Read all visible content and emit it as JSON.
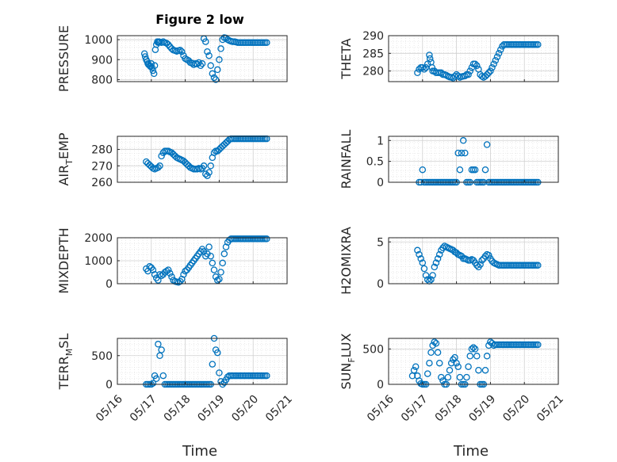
{
  "figure": {
    "title": "Figure 2 low",
    "background": "#ffffff"
  },
  "colors": {
    "marker": "#0072bd",
    "axis": "#262626",
    "grid": "#dcdcdc"
  },
  "chart_data": [
    {
      "type": "scatter",
      "ylabel": "PRESSURE",
      "yticks": [
        800,
        900,
        1000
      ],
      "ylim": [
        790,
        1020
      ],
      "xlim": [
        0,
        5
      ],
      "x": [
        0.8,
        0.82,
        0.85,
        0.88,
        0.9,
        0.92,
        0.95,
        0.98,
        1.0,
        1.02,
        1.05,
        1.08,
        1.1,
        1.12,
        1.15,
        1.18,
        1.2,
        1.22,
        1.25,
        1.3,
        1.35,
        1.4,
        1.45,
        1.5,
        1.55,
        1.6,
        1.65,
        1.7,
        1.75,
        1.8,
        1.85,
        1.9,
        1.95,
        2.0,
        2.05,
        2.1,
        2.15,
        2.2,
        2.25,
        2.3,
        2.35,
        2.4,
        2.45,
        2.5,
        2.55,
        2.6,
        2.65,
        2.7,
        2.75,
        2.8,
        2.85,
        2.9,
        2.95,
        3.0,
        3.05,
        3.1,
        3.15,
        3.2,
        3.25,
        3.3,
        3.35,
        3.4,
        3.45,
        3.5,
        3.55,
        3.6,
        3.65,
        3.7,
        3.75,
        3.8,
        3.85,
        3.9,
        3.95,
        4.0,
        4.05,
        4.1,
        4.15,
        4.2,
        4.25,
        4.3,
        4.35,
        4.4
      ],
      "y": [
        930,
        915,
        900,
        890,
        880,
        875,
        870,
        865,
        880,
        860,
        845,
        830,
        870,
        950,
        975,
        990,
        985,
        990,
        988,
        985,
        990,
        985,
        982,
        975,
        965,
        955,
        948,
        945,
        942,
        945,
        948,
        940,
        920,
        905,
        900,
        895,
        885,
        882,
        875,
        880,
        878,
        885,
        870,
        880,
        1005,
        990,
        940,
        920,
        870,
        830,
        810,
        800,
        850,
        900,
        955,
        1000,
        1010,
        1008,
        1000,
        995,
        992,
        990,
        990,
        988,
        985,
        985,
        985,
        985,
        985,
        985,
        985,
        985,
        985,
        985,
        985,
        985,
        985,
        985,
        985,
        985,
        985,
        985
      ]
    },
    {
      "type": "scatter",
      "ylabel": "THETA",
      "yticks": [
        280,
        285,
        290
      ],
      "ylim": [
        277,
        290
      ],
      "xlim": [
        0,
        5
      ],
      "x": [
        0.85,
        0.9,
        0.95,
        1.0,
        1.05,
        1.1,
        1.15,
        1.2,
        1.22,
        1.25,
        1.28,
        1.3,
        1.35,
        1.4,
        1.45,
        1.5,
        1.55,
        1.6,
        1.65,
        1.7,
        1.75,
        1.8,
        1.85,
        1.9,
        1.95,
        2.0,
        2.05,
        2.1,
        2.15,
        2.2,
        2.25,
        2.3,
        2.35,
        2.4,
        2.45,
        2.5,
        2.55,
        2.6,
        2.65,
        2.7,
        2.75,
        2.8,
        2.85,
        2.9,
        2.95,
        3.0,
        3.05,
        3.1,
        3.15,
        3.2,
        3.25,
        3.3,
        3.35,
        3.4,
        3.45,
        3.5,
        3.55,
        3.6,
        3.65,
        3.7,
        3.75,
        3.8,
        3.85,
        3.9,
        3.95,
        4.0,
        4.05,
        4.1,
        4.15,
        4.2,
        4.25,
        4.3,
        4.35,
        4.4
      ],
      "y": [
        279.5,
        280.5,
        281,
        281,
        280.5,
        281,
        282,
        284.5,
        283.5,
        282.5,
        281,
        280,
        280,
        279.5,
        279.5,
        279.5,
        279.5,
        279,
        279,
        278.8,
        278.5,
        278.3,
        278.2,
        278,
        278.5,
        279,
        278.6,
        278.2,
        278.4,
        278.5,
        278.6,
        279,
        279,
        280,
        281,
        282,
        282,
        281.5,
        280.5,
        279,
        278.5,
        278.2,
        278.5,
        279,
        279.5,
        280,
        281,
        282,
        283,
        284,
        285,
        286,
        287,
        287.5,
        287.5,
        287.5,
        287.5,
        287.5,
        287.5,
        287.5,
        287.5,
        287.5,
        287.5,
        287.5,
        287.5,
        287.5,
        287.5,
        287.5,
        287.5,
        287.5,
        287.5,
        287.5,
        287.5,
        287.5
      ]
    },
    {
      "type": "scatter",
      "ylabel": "AIR_TEMP",
      "ylabel_base": "AIR",
      "ylabel_sub": "T",
      "ylabel_rest": "EMP",
      "yticks": [
        260,
        270,
        280
      ],
      "ylim": [
        260,
        288
      ],
      "xlim": [
        0,
        5
      ],
      "x": [
        0.85,
        0.9,
        0.95,
        1.0,
        1.05,
        1.1,
        1.15,
        1.2,
        1.25,
        1.3,
        1.35,
        1.4,
        1.45,
        1.5,
        1.55,
        1.6,
        1.65,
        1.7,
        1.75,
        1.8,
        1.85,
        1.9,
        1.95,
        2.0,
        2.05,
        2.1,
        2.15,
        2.2,
        2.25,
        2.3,
        2.35,
        2.4,
        2.45,
        2.5,
        2.55,
        2.6,
        2.65,
        2.7,
        2.75,
        2.8,
        2.85,
        2.9,
        2.95,
        3.0,
        3.05,
        3.1,
        3.15,
        3.2,
        3.25,
        3.3,
        3.35,
        3.4,
        3.45,
        3.5,
        3.55,
        3.6,
        3.65,
        3.7,
        3.75,
        3.8,
        3.85,
        3.9,
        3.95,
        4.0,
        4.05,
        4.1,
        4.15,
        4.2,
        4.25,
        4.3,
        4.35,
        4.4
      ],
      "y": [
        272.5,
        271.5,
        270.5,
        269.5,
        268.5,
        268,
        268.5,
        269,
        270,
        276,
        278,
        279,
        279,
        279,
        278.5,
        278,
        277,
        276,
        275,
        274.5,
        274,
        273.5,
        273,
        272,
        271,
        270,
        269,
        268.5,
        268,
        268,
        268,
        268.5,
        268,
        268.5,
        270,
        265,
        264,
        266,
        270,
        275,
        278,
        279,
        279,
        280,
        281,
        282,
        283,
        284,
        285,
        286,
        286.5,
        286.5,
        286.5,
        286.5,
        286.5,
        286.5,
        286.5,
        286.5,
        286.5,
        286.5,
        286.5,
        286.5,
        286.5,
        286.5,
        286.5,
        286.5,
        286.5,
        286.5,
        286.5,
        286.5,
        286.5,
        286.5
      ]
    },
    {
      "type": "scatter",
      "ylabel": "RAINFALL",
      "yticks": [
        0,
        0.5,
        1
      ],
      "yticklabels": [
        "0",
        "0.5",
        "1"
      ],
      "ylim": [
        0,
        1.1
      ],
      "xlim": [
        0,
        5
      ],
      "x": [
        0.9,
        0.95,
        1.0,
        1.05,
        1.1,
        1.15,
        1.2,
        1.25,
        1.3,
        1.35,
        1.4,
        1.45,
        1.5,
        1.55,
        1.6,
        1.65,
        1.7,
        1.75,
        1.8,
        1.85,
        1.9,
        1.95,
        2.0,
        2.05,
        2.1,
        2.15,
        2.2,
        2.25,
        2.3,
        2.35,
        2.4,
        2.45,
        2.5,
        2.55,
        2.6,
        2.65,
        2.7,
        2.75,
        2.8,
        2.85,
        2.9,
        2.95,
        3.0,
        3.05,
        3.1,
        3.15,
        3.2,
        3.25,
        3.3,
        3.35,
        3.4,
        3.45,
        3.5,
        3.55,
        3.6,
        3.65,
        3.7,
        3.75,
        3.8,
        3.85,
        3.9,
        3.95,
        4.0,
        4.05,
        4.1,
        4.15,
        4.2,
        4.25,
        4.3,
        4.35,
        4.4
      ],
      "y": [
        0,
        0,
        0.3,
        0,
        0,
        0,
        0,
        0,
        0,
        0,
        0,
        0,
        0,
        0,
        0,
        0,
        0,
        0,
        0,
        0,
        0,
        0,
        0,
        0.7,
        0.3,
        0.7,
        1,
        0.7,
        0,
        0,
        0,
        0.3,
        0.3,
        0.3,
        0,
        0,
        0,
        0,
        0,
        0.3,
        0.9,
        0,
        0,
        0,
        0,
        0,
        0,
        0,
        0,
        0,
        0,
        0,
        0,
        0,
        0,
        0,
        0,
        0,
        0,
        0,
        0,
        0,
        0,
        0,
        0,
        0,
        0,
        0,
        0,
        0,
        0
      ]
    },
    {
      "type": "scatter",
      "ylabel": "MIXDEPTH",
      "yticks": [
        0,
        1000,
        2000
      ],
      "ylim": [
        0,
        2000
      ],
      "xlim": [
        0,
        5
      ],
      "x": [
        0.85,
        0.9,
        0.95,
        1.0,
        1.05,
        1.1,
        1.15,
        1.2,
        1.25,
        1.3,
        1.35,
        1.4,
        1.45,
        1.5,
        1.55,
        1.6,
        1.65,
        1.7,
        1.75,
        1.8,
        1.85,
        1.9,
        1.95,
        2.0,
        2.05,
        2.1,
        2.15,
        2.2,
        2.25,
        2.3,
        2.35,
        2.4,
        2.45,
        2.5,
        2.55,
        2.6,
        2.65,
        2.7,
        2.75,
        2.8,
        2.85,
        2.9,
        2.95,
        3.0,
        3.05,
        3.1,
        3.15,
        3.2,
        3.25,
        3.3,
        3.35,
        3.4,
        3.45,
        3.5,
        3.55,
        3.6,
        3.65,
        3.7,
        3.75,
        3.8,
        3.85,
        3.9,
        3.95,
        4.0,
        4.05,
        4.1,
        4.15,
        4.2,
        4.25,
        4.3,
        4.35,
        4.4
      ],
      "y": [
        650,
        550,
        750,
        700,
        600,
        400,
        250,
        150,
        400,
        350,
        400,
        500,
        550,
        600,
        450,
        300,
        150,
        100,
        80,
        60,
        100,
        200,
        400,
        550,
        600,
        700,
        800,
        900,
        1000,
        1100,
        1200,
        1300,
        1400,
        1500,
        1400,
        1200,
        1300,
        1600,
        1200,
        900,
        600,
        300,
        150,
        200,
        500,
        900,
        1300,
        1600,
        1800,
        1900,
        1950,
        1950,
        1950,
        1950,
        1950,
        1950,
        1950,
        1950,
        1950,
        1950,
        1950,
        1950,
        1950,
        1950,
        1950,
        1950,
        1950,
        1950,
        1950,
        1950,
        1950,
        1950
      ]
    },
    {
      "type": "scatter",
      "ylabel": "H2OMIXRA",
      "yticks": [
        0,
        5
      ],
      "ylim": [
        0,
        5.5
      ],
      "xlim": [
        0,
        5
      ],
      "x": [
        0.85,
        0.9,
        0.95,
        1.0,
        1.05,
        1.1,
        1.15,
        1.2,
        1.25,
        1.3,
        1.35,
        1.4,
        1.45,
        1.5,
        1.55,
        1.6,
        1.65,
        1.7,
        1.75,
        1.8,
        1.85,
        1.9,
        1.95,
        2.0,
        2.05,
        2.1,
        2.15,
        2.2,
        2.25,
        2.3,
        2.35,
        2.4,
        2.45,
        2.5,
        2.55,
        2.6,
        2.65,
        2.7,
        2.75,
        2.8,
        2.85,
        2.9,
        2.95,
        3.0,
        3.05,
        3.1,
        3.15,
        3.2,
        3.25,
        3.3,
        3.35,
        3.4,
        3.45,
        3.5,
        3.55,
        3.6,
        3.65,
        3.7,
        3.75,
        3.8,
        3.85,
        3.9,
        3.95,
        4.0,
        4.05,
        4.1,
        4.15,
        4.2,
        4.25,
        4.3,
        4.35,
        4.4
      ],
      "y": [
        4.0,
        3.5,
        3.0,
        2.5,
        1.8,
        1.0,
        0.5,
        0.3,
        0.5,
        1.0,
        2.0,
        2.5,
        3.0,
        3.5,
        4.0,
        4.3,
        4.5,
        4.4,
        4.3,
        4.2,
        4.1,
        4.0,
        3.8,
        3.7,
        3.5,
        3.4,
        3.3,
        3.0,
        3.0,
        2.9,
        2.8,
        2.8,
        2.9,
        2.8,
        2.5,
        2.2,
        2.0,
        2.3,
        2.8,
        3.0,
        3.3,
        3.5,
        3.4,
        3.0,
        2.7,
        2.5,
        2.4,
        2.3,
        2.2,
        2.2,
        2.2,
        2.2,
        2.2,
        2.2,
        2.2,
        2.2,
        2.2,
        2.2,
        2.2,
        2.2,
        2.2,
        2.2,
        2.2,
        2.2,
        2.2,
        2.2,
        2.2,
        2.2,
        2.2,
        2.2,
        2.2,
        2.2
      ]
    },
    {
      "type": "scatter",
      "ylabel": "TERR_MSL",
      "ylabel_base": "TERR",
      "ylabel_sub": "M",
      "ylabel_rest": "SL",
      "yticks": [
        0,
        500
      ],
      "ylim": [
        0,
        800
      ],
      "xlim": [
        0,
        5
      ],
      "x": [
        0.85,
        0.9,
        0.95,
        1.0,
        1.05,
        1.1,
        1.15,
        1.2,
        1.25,
        1.3,
        1.35,
        1.4,
        1.45,
        1.5,
        1.55,
        1.6,
        1.65,
        1.7,
        1.75,
        1.8,
        1.85,
        1.9,
        1.95,
        2.0,
        2.05,
        2.1,
        2.15,
        2.2,
        2.25,
        2.3,
        2.35,
        2.4,
        2.45,
        2.5,
        2.55,
        2.6,
        2.65,
        2.7,
        2.75,
        2.8,
        2.85,
        2.9,
        2.95,
        3.0,
        3.05,
        3.1,
        3.15,
        3.2,
        3.25,
        3.3,
        3.35,
        3.4,
        3.45,
        3.5,
        3.55,
        3.6,
        3.65,
        3.7,
        3.75,
        3.8,
        3.85,
        3.9,
        3.95,
        4.0,
        4.05,
        4.1,
        4.15,
        4.2,
        4.25,
        4.3,
        4.35,
        4.4
      ],
      "y": [
        0,
        0,
        0,
        0,
        20,
        150,
        100,
        700,
        500,
        600,
        150,
        0,
        0,
        0,
        0,
        0,
        0,
        0,
        0,
        0,
        0,
        0,
        0,
        0,
        0,
        0,
        0,
        0,
        0,
        0,
        0,
        0,
        0,
        0,
        0,
        0,
        0,
        0,
        0,
        350,
        800,
        600,
        550,
        200,
        50,
        0,
        30,
        80,
        130,
        150,
        150,
        150,
        150,
        150,
        150,
        150,
        150,
        150,
        150,
        150,
        150,
        150,
        150,
        150,
        150,
        150,
        150,
        150,
        150,
        150,
        150,
        150
      ]
    },
    {
      "type": "scatter",
      "ylabel": "SUN_FLUX",
      "ylabel_base": "SUN",
      "ylabel_sub": "F",
      "ylabel_rest": "LUX",
      "yticks": [
        0,
        500
      ],
      "ylim": [
        0,
        650
      ],
      "xlim": [
        0,
        5
      ],
      "x": [
        0.7,
        0.75,
        0.8,
        0.85,
        0.9,
        0.95,
        1.0,
        1.05,
        1.1,
        1.15,
        1.2,
        1.25,
        1.3,
        1.35,
        1.4,
        1.45,
        1.5,
        1.55,
        1.6,
        1.65,
        1.7,
        1.75,
        1.8,
        1.85,
        1.9,
        1.95,
        2.0,
        2.05,
        2.1,
        2.15,
        2.2,
        2.25,
        2.3,
        2.35,
        2.4,
        2.45,
        2.5,
        2.55,
        2.6,
        2.65,
        2.7,
        2.75,
        2.8,
        2.85,
        2.9,
        2.95,
        3.0,
        3.05,
        3.1,
        3.15,
        3.2,
        3.25,
        3.3,
        3.35,
        3.4,
        3.45,
        3.5,
        3.55,
        3.6,
        3.65,
        3.7,
        3.75,
        3.8,
        3.85,
        3.9,
        3.95,
        4.0,
        4.05,
        4.1,
        4.15,
        4.2,
        4.25,
        4.3,
        4.35,
        4.4
      ],
      "y": [
        120,
        200,
        250,
        120,
        50,
        10,
        0,
        0,
        0,
        150,
        300,
        450,
        550,
        600,
        580,
        450,
        300,
        100,
        50,
        0,
        0,
        100,
        200,
        300,
        350,
        380,
        300,
        250,
        100,
        0,
        0,
        0,
        100,
        250,
        400,
        500,
        520,
        500,
        400,
        200,
        0,
        0,
        0,
        200,
        400,
        550,
        600,
        580,
        550,
        560,
        560,
        560,
        560,
        560,
        560,
        560,
        560,
        560,
        560,
        560,
        560,
        560,
        560,
        560,
        560,
        560,
        560,
        560,
        560,
        560,
        560,
        560,
        560,
        560,
        560
      ]
    }
  ],
  "xaxis": {
    "ticks": [
      0,
      1,
      2,
      3,
      4,
      5
    ],
    "ticklabels": [
      "05/16",
      "05/17",
      "05/18",
      "05/19",
      "05/20",
      "05/21"
    ],
    "label": "Time"
  }
}
